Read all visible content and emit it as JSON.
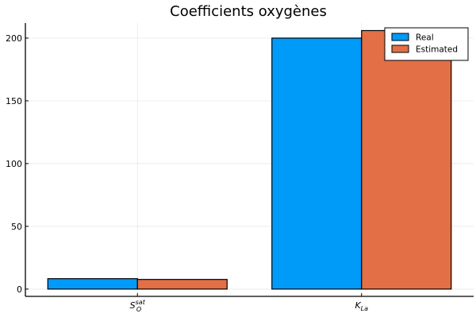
{
  "chart_data": {
    "type": "bar",
    "title": "Coefficients oxygènes",
    "xlabel": "",
    "ylabel": "",
    "categories": [
      {
        "base": "S",
        "sub": "O",
        "sup": "sat"
      },
      {
        "base": "K",
        "sub": "La",
        "sup": ""
      }
    ],
    "series": [
      {
        "name": "Real",
        "values": [
          8.3,
          200
        ]
      },
      {
        "name": "Estimated",
        "values": [
          7.7,
          206
        ]
      }
    ],
    "colors": [
      "#009AF9",
      "#E26F46"
    ],
    "ylim": [
      -5.8,
      212
    ],
    "yticks": [
      0,
      50,
      100,
      150,
      200
    ],
    "grid": true,
    "legend": "top-right"
  }
}
